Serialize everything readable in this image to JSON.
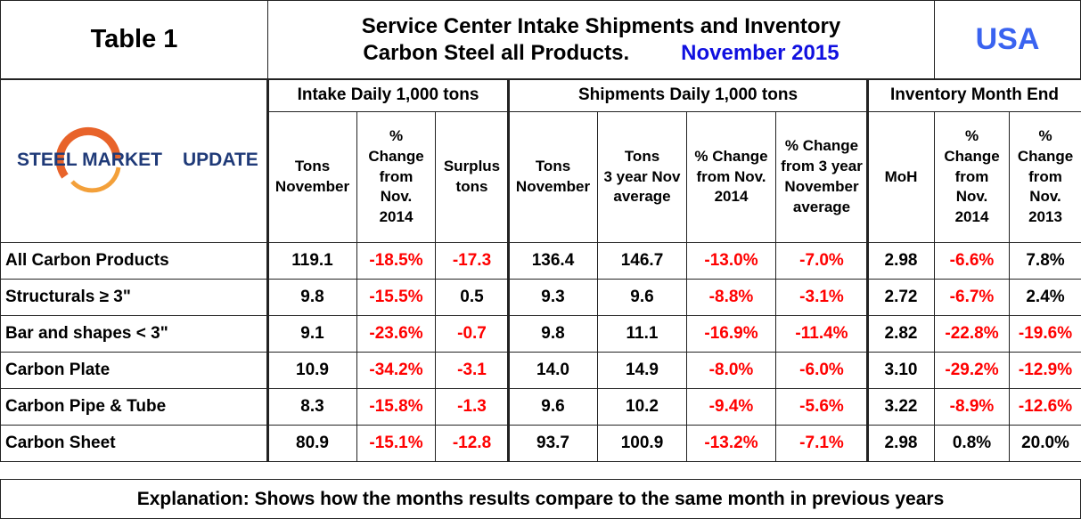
{
  "header": {
    "label": "Table 1",
    "title": [
      "Service Center Intake Shipments and Inventory",
      "Carbon Steel all Products."
    ],
    "date": "November 2015",
    "region": "USA"
  },
  "logo": {
    "brand": "STEEL MARKET",
    "tagline": "UPDATE"
  },
  "table": {
    "groups": [
      "Intake Daily 1,000 tons",
      "Shipments Daily 1,000 tons",
      "Inventory Month End"
    ],
    "columns": [
      [
        "Tons",
        "November"
      ],
      [
        "%",
        "Change",
        "from",
        "Nov.",
        "2014"
      ],
      [
        "Surplus",
        "tons"
      ],
      [
        "Tons",
        "November"
      ],
      [
        "Tons",
        "3 year Nov",
        "average"
      ],
      [
        "% Change",
        "from Nov.",
        "2014"
      ],
      [
        "% Change",
        "from 3 year",
        "November",
        "average"
      ],
      [
        "MoH"
      ],
      [
        "%",
        "Change",
        "from",
        "Nov.",
        "2014"
      ],
      [
        "%",
        "Change",
        "from",
        "Nov.",
        "2013"
      ]
    ],
    "rows": [
      [
        "All Carbon Products",
        "119.1",
        "-18.5%",
        "-17.3",
        "136.4",
        "146.7",
        "-13.0%",
        "-7.0%",
        "2.98",
        "-6.6%",
        "7.8%"
      ],
      [
        "Structurals ≥ 3\"",
        "9.8",
        "-15.5%",
        "0.5",
        "9.3",
        "9.6",
        "-8.8%",
        "-3.1%",
        "2.72",
        "-6.7%",
        "2.4%"
      ],
      [
        "Bar and shapes < 3\"",
        "9.1",
        "-23.6%",
        "-0.7",
        "9.8",
        "11.1",
        "-16.9%",
        "-11.4%",
        "2.82",
        "-22.8%",
        "-19.6%"
      ],
      [
        "Carbon Plate",
        "10.9",
        "-34.2%",
        "-3.1",
        "14.0",
        "14.9",
        "-8.0%",
        "-6.0%",
        "3.10",
        "-29.2%",
        "-12.9%"
      ],
      [
        "Carbon Pipe & Tube",
        "8.3",
        "-15.8%",
        "-1.3",
        "9.6",
        "10.2",
        "-9.4%",
        "-5.6%",
        "3.22",
        "-8.9%",
        "-12.6%"
      ],
      [
        "Carbon Sheet",
        "80.9",
        "-15.1%",
        "-12.8",
        "93.7",
        "100.9",
        "-13.2%",
        "-7.1%",
        "2.98",
        "0.8%",
        "20.0%"
      ]
    ]
  },
  "footer": "Explanation: Shows how the months results compare to the same month in previous years"
}
